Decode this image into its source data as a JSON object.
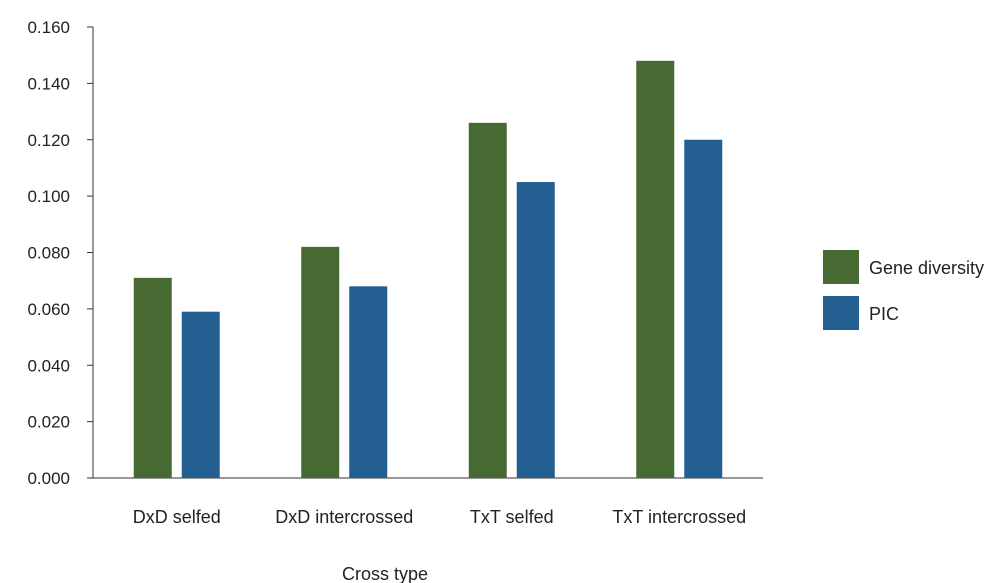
{
  "chart_data": {
    "type": "bar",
    "title": "",
    "xlabel": "Cross type",
    "ylabel": "",
    "ylim": [
      0,
      0.16
    ],
    "y_ticks": [
      "0.000",
      "0.020",
      "0.040",
      "0.060",
      "0.080",
      "0.100",
      "0.120",
      "0.140",
      "0.160"
    ],
    "categories": [
      "DxD selfed",
      "DxD intercrossed",
      "TxT selfed",
      "TxT intercrossed"
    ],
    "series": [
      {
        "name": "Gene diversity",
        "color": "#466a31",
        "values": [
          0.071,
          0.082,
          0.126,
          0.148
        ]
      },
      {
        "name": "PIC",
        "color": "#245f91",
        "values": [
          0.059,
          0.068,
          0.105,
          0.12
        ]
      }
    ],
    "legend_position": "right",
    "grid": false
  }
}
